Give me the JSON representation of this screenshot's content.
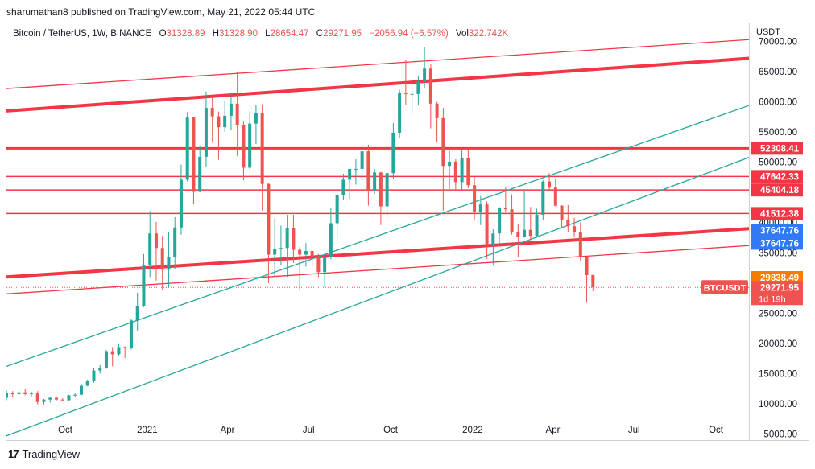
{
  "header": {
    "published": "sharumathan8 published on TradingView.com, May 21, 2022 05:44 UTC"
  },
  "legend": {
    "symbol": "Bitcoin / TetherUS, 1W, BINANCE",
    "o_label": "O",
    "o_value": "31328.89",
    "h_label": "H",
    "h_value": "31328.90",
    "l_label": "L",
    "l_value": "28654.47",
    "c_label": "C",
    "c_value": "29271.95",
    "change": "−2056.94 (−6.57%)",
    "vol_label": "Vol",
    "vol_value": "322.742K"
  },
  "axis": {
    "currency": "USDT"
  },
  "footer": {
    "brand": "TradingView",
    "logo": "17"
  },
  "colors": {
    "up": "#26a69a",
    "down": "#ef5350",
    "level": "#f23645",
    "channel": "#26a69a",
    "blue_tag": "#2962ff",
    "orange_tag": "#f57c00"
  },
  "chart_data": {
    "type": "candlestick",
    "x_range": [
      "2020-07-27",
      "2022-11-07"
    ],
    "ylim": [
      4000,
      73000
    ],
    "y_ticks": [
      5000,
      10000,
      15000,
      20000,
      25000,
      30000,
      35000,
      40000,
      45000,
      50000,
      55000,
      60000,
      65000,
      70000
    ],
    "y_tick_labels": [
      "5000.00",
      "10000.00",
      "15000.00",
      "20000.00",
      "25000.00",
      "30000.00",
      "35000.00",
      "40000.00",
      "45000.00",
      "50000.00",
      "55000.00",
      "60000.00",
      "65000.00",
      "70000.00"
    ],
    "x_ticks": [
      {
        "date": "2020-10-01",
        "label": "Oct"
      },
      {
        "date": "2021-01-01",
        "label": "2021"
      },
      {
        "date": "2021-04-01",
        "label": "Apr"
      },
      {
        "date": "2021-07-01",
        "label": "Jul"
      },
      {
        "date": "2021-10-01",
        "label": "Oct"
      },
      {
        "date": "2022-01-01",
        "label": "2022"
      },
      {
        "date": "2022-04-01",
        "label": "Apr"
      },
      {
        "date": "2022-07-01",
        "label": "Jul"
      },
      {
        "date": "2022-10-01",
        "label": "Oct"
      }
    ],
    "candles": [
      {
        "d": "2020-07-27",
        "o": 11000,
        "h": 12200,
        "l": 10600,
        "c": 11800
      },
      {
        "d": "2020-08-03",
        "o": 11800,
        "h": 12100,
        "l": 11200,
        "c": 11600
      },
      {
        "d": "2020-08-10",
        "o": 11600,
        "h": 12300,
        "l": 11100,
        "c": 11900
      },
      {
        "d": "2020-08-17",
        "o": 11900,
        "h": 12500,
        "l": 11400,
        "c": 11600
      },
      {
        "d": "2020-08-24",
        "o": 11600,
        "h": 12000,
        "l": 11200,
        "c": 11700
      },
      {
        "d": "2020-08-31",
        "o": 11700,
        "h": 12100,
        "l": 9900,
        "c": 10300
      },
      {
        "d": "2020-09-07",
        "o": 10300,
        "h": 10800,
        "l": 9900,
        "c": 10700
      },
      {
        "d": "2020-09-14",
        "o": 10700,
        "h": 11100,
        "l": 10200,
        "c": 11000
      },
      {
        "d": "2020-09-21",
        "o": 11000,
        "h": 11100,
        "l": 10400,
        "c": 10700
      },
      {
        "d": "2020-09-28",
        "o": 10700,
        "h": 10900,
        "l": 10400,
        "c": 10600
      },
      {
        "d": "2020-10-05",
        "o": 10600,
        "h": 11500,
        "l": 10500,
        "c": 11400
      },
      {
        "d": "2020-10-12",
        "o": 11400,
        "h": 11800,
        "l": 11200,
        "c": 11500
      },
      {
        "d": "2020-10-19",
        "o": 11500,
        "h": 13300,
        "l": 11400,
        "c": 13000
      },
      {
        "d": "2020-10-26",
        "o": 13000,
        "h": 14000,
        "l": 12900,
        "c": 13800
      },
      {
        "d": "2020-11-02",
        "o": 13800,
        "h": 15900,
        "l": 13500,
        "c": 15500
      },
      {
        "d": "2020-11-09",
        "o": 15500,
        "h": 16400,
        "l": 15000,
        "c": 16000
      },
      {
        "d": "2020-11-16",
        "o": 16000,
        "h": 18900,
        "l": 15800,
        "c": 18700
      },
      {
        "d": "2020-11-23",
        "o": 18700,
        "h": 19400,
        "l": 16200,
        "c": 18200
      },
      {
        "d": "2020-11-30",
        "o": 18200,
        "h": 19900,
        "l": 18000,
        "c": 19400
      },
      {
        "d": "2020-12-07",
        "o": 19400,
        "h": 19500,
        "l": 17600,
        "c": 19200
      },
      {
        "d": "2020-12-14",
        "o": 19200,
        "h": 24000,
        "l": 19000,
        "c": 23800
      },
      {
        "d": "2020-12-21",
        "o": 23800,
        "h": 28400,
        "l": 22000,
        "c": 26200
      },
      {
        "d": "2020-12-28",
        "o": 26200,
        "h": 34800,
        "l": 26000,
        "c": 33000
      },
      {
        "d": "2021-01-04",
        "o": 33000,
        "h": 41900,
        "l": 31000,
        "c": 38200
      },
      {
        "d": "2021-01-11",
        "o": 38200,
        "h": 40100,
        "l": 30400,
        "c": 35800
      },
      {
        "d": "2021-01-18",
        "o": 35800,
        "h": 37800,
        "l": 28800,
        "c": 32200
      },
      {
        "d": "2021-01-25",
        "o": 32200,
        "h": 38500,
        "l": 29300,
        "c": 34300
      },
      {
        "d": "2021-02-01",
        "o": 34300,
        "h": 40900,
        "l": 32300,
        "c": 39200
      },
      {
        "d": "2021-02-08",
        "o": 39200,
        "h": 49600,
        "l": 38000,
        "c": 47100
      },
      {
        "d": "2021-02-15",
        "o": 47100,
        "h": 58300,
        "l": 46800,
        "c": 57400
      },
      {
        "d": "2021-02-22",
        "o": 57400,
        "h": 57500,
        "l": 43000,
        "c": 45100
      },
      {
        "d": "2021-03-01",
        "o": 45100,
        "h": 52600,
        "l": 45000,
        "c": 50900
      },
      {
        "d": "2021-03-08",
        "o": 50900,
        "h": 61700,
        "l": 49300,
        "c": 59000
      },
      {
        "d": "2021-03-15",
        "o": 59000,
        "h": 61200,
        "l": 53300,
        "c": 57600
      },
      {
        "d": "2021-03-22",
        "o": 57600,
        "h": 58400,
        "l": 50400,
        "c": 55800
      },
      {
        "d": "2021-03-29",
        "o": 55800,
        "h": 60200,
        "l": 55000,
        "c": 57700
      },
      {
        "d": "2021-04-05",
        "o": 57700,
        "h": 61400,
        "l": 55400,
        "c": 59700
      },
      {
        "d": "2021-04-12",
        "o": 59700,
        "h": 64900,
        "l": 51000,
        "c": 56200
      },
      {
        "d": "2021-04-19",
        "o": 56200,
        "h": 56700,
        "l": 47000,
        "c": 49100
      },
      {
        "d": "2021-04-26",
        "o": 49100,
        "h": 58400,
        "l": 48800,
        "c": 56400
      },
      {
        "d": "2021-05-03",
        "o": 56400,
        "h": 59500,
        "l": 53000,
        "c": 58100
      },
      {
        "d": "2021-05-10",
        "o": 58100,
        "h": 59600,
        "l": 42000,
        "c": 46400
      },
      {
        "d": "2021-05-17",
        "o": 46400,
        "h": 46600,
        "l": 30000,
        "c": 34700
      },
      {
        "d": "2021-05-24",
        "o": 34700,
        "h": 40800,
        "l": 31000,
        "c": 35700
      },
      {
        "d": "2021-05-31",
        "o": 35700,
        "h": 39500,
        "l": 33000,
        "c": 35800
      },
      {
        "d": "2021-06-07",
        "o": 35800,
        "h": 41300,
        "l": 31000,
        "c": 39100
      },
      {
        "d": "2021-06-14",
        "o": 39100,
        "h": 41300,
        "l": 33300,
        "c": 35500
      },
      {
        "d": "2021-06-21",
        "o": 35500,
        "h": 36000,
        "l": 28800,
        "c": 34700
      },
      {
        "d": "2021-06-28",
        "o": 34700,
        "h": 36600,
        "l": 32700,
        "c": 35300
      },
      {
        "d": "2021-07-05",
        "o": 35300,
        "h": 35300,
        "l": 32700,
        "c": 34200
      },
      {
        "d": "2021-07-12",
        "o": 34200,
        "h": 34800,
        "l": 31000,
        "c": 31800
      },
      {
        "d": "2021-07-19",
        "o": 31800,
        "h": 35000,
        "l": 29300,
        "c": 34300
      },
      {
        "d": "2021-07-26",
        "o": 34300,
        "h": 42400,
        "l": 33900,
        "c": 39900
      },
      {
        "d": "2021-08-02",
        "o": 39900,
        "h": 44800,
        "l": 37500,
        "c": 44600
      },
      {
        "d": "2021-08-09",
        "o": 44600,
        "h": 48100,
        "l": 43700,
        "c": 47100
      },
      {
        "d": "2021-08-16",
        "o": 47100,
        "h": 48600,
        "l": 43900,
        "c": 48900
      },
      {
        "d": "2021-08-23",
        "o": 48900,
        "h": 50500,
        "l": 46300,
        "c": 48900
      },
      {
        "d": "2021-08-30",
        "o": 48900,
        "h": 52900,
        "l": 46900,
        "c": 51800
      },
      {
        "d": "2021-09-06",
        "o": 51800,
        "h": 52900,
        "l": 42800,
        "c": 45200
      },
      {
        "d": "2021-09-13",
        "o": 45200,
        "h": 48900,
        "l": 44800,
        "c": 48300
      },
      {
        "d": "2021-09-20",
        "o": 48300,
        "h": 48400,
        "l": 39600,
        "c": 42700
      },
      {
        "d": "2021-09-27",
        "o": 42700,
        "h": 48500,
        "l": 40700,
        "c": 48200
      },
      {
        "d": "2021-10-04",
        "o": 48200,
        "h": 56500,
        "l": 47300,
        "c": 54900
      },
      {
        "d": "2021-10-11",
        "o": 54900,
        "h": 62000,
        "l": 54100,
        "c": 61500
      },
      {
        "d": "2021-10-18",
        "o": 61500,
        "h": 67000,
        "l": 59500,
        "c": 61300
      },
      {
        "d": "2021-10-25",
        "o": 61300,
        "h": 63300,
        "l": 58000,
        "c": 61300
      },
      {
        "d": "2021-11-01",
        "o": 61300,
        "h": 64200,
        "l": 59400,
        "c": 63300
      },
      {
        "d": "2021-11-08",
        "o": 63300,
        "h": 69000,
        "l": 62300,
        "c": 65500
      },
      {
        "d": "2021-11-15",
        "o": 65500,
        "h": 66300,
        "l": 55600,
        "c": 59700
      },
      {
        "d": "2021-11-22",
        "o": 59700,
        "h": 60000,
        "l": 53300,
        "c": 57300
      },
      {
        "d": "2021-11-29",
        "o": 57300,
        "h": 59000,
        "l": 42000,
        "c": 49400
      },
      {
        "d": "2021-12-06",
        "o": 49400,
        "h": 51900,
        "l": 45600,
        "c": 50100
      },
      {
        "d": "2021-12-13",
        "o": 50100,
        "h": 50500,
        "l": 45500,
        "c": 46700
      },
      {
        "d": "2021-12-20",
        "o": 46700,
        "h": 52100,
        "l": 45500,
        "c": 50700
      },
      {
        "d": "2021-12-27",
        "o": 50700,
        "h": 52200,
        "l": 45700,
        "c": 46200
      },
      {
        "d": "2022-01-03",
        "o": 46200,
        "h": 47500,
        "l": 40500,
        "c": 41800
      },
      {
        "d": "2022-01-10",
        "o": 41800,
        "h": 44400,
        "l": 39600,
        "c": 43000
      },
      {
        "d": "2022-01-17",
        "o": 43000,
        "h": 43500,
        "l": 34000,
        "c": 36300
      },
      {
        "d": "2022-01-24",
        "o": 36300,
        "h": 38900,
        "l": 32900,
        "c": 38200
      },
      {
        "d": "2022-01-31",
        "o": 38200,
        "h": 42600,
        "l": 36200,
        "c": 42400
      },
      {
        "d": "2022-02-07",
        "o": 42400,
        "h": 45800,
        "l": 41800,
        "c": 42200
      },
      {
        "d": "2022-02-14",
        "o": 42200,
        "h": 44700,
        "l": 38000,
        "c": 38400
      },
      {
        "d": "2022-02-21",
        "o": 38400,
        "h": 39800,
        "l": 34300,
        "c": 37700
      },
      {
        "d": "2022-02-28",
        "o": 37700,
        "h": 45400,
        "l": 37500,
        "c": 38800
      },
      {
        "d": "2022-03-07",
        "o": 38800,
        "h": 42600,
        "l": 37100,
        "c": 37800
      },
      {
        "d": "2022-03-14",
        "o": 37800,
        "h": 42300,
        "l": 37500,
        "c": 41300
      },
      {
        "d": "2022-03-21",
        "o": 41300,
        "h": 47000,
        "l": 40500,
        "c": 46800
      },
      {
        "d": "2022-03-28",
        "o": 46800,
        "h": 48200,
        "l": 45200,
        "c": 45800
      },
      {
        "d": "2022-04-04",
        "o": 45800,
        "h": 47200,
        "l": 42700,
        "c": 42800
      },
      {
        "d": "2022-04-11",
        "o": 42800,
        "h": 42900,
        "l": 39200,
        "c": 40400
      },
      {
        "d": "2022-04-18",
        "o": 40400,
        "h": 42900,
        "l": 38500,
        "c": 39400
      },
      {
        "d": "2022-04-25",
        "o": 39400,
        "h": 40800,
        "l": 37600,
        "c": 38500
      },
      {
        "d": "2022-05-02",
        "o": 38500,
        "h": 40000,
        "l": 33700,
        "c": 34300
      },
      {
        "d": "2022-05-09",
        "o": 34300,
        "h": 34400,
        "l": 26700,
        "c": 31300
      },
      {
        "d": "2022-05-16",
        "o": 31328.89,
        "h": 31328.9,
        "l": 28654.47,
        "c": 29271.95
      }
    ],
    "horizontal_levels": [
      {
        "price": 52308.41,
        "label": "52308.41",
        "style": "red"
      },
      {
        "price": 47642.33,
        "label": "47642.33",
        "style": "red"
      },
      {
        "price": 45404.18,
        "label": "45404.18",
        "style": "red"
      },
      {
        "price": 41512.38,
        "label": "41512.38",
        "style": "red"
      }
    ],
    "trendlines": [
      {
        "color": "red",
        "width": "thick",
        "p1": {
          "d": "2020-07-27",
          "v": 58500
        },
        "p2": {
          "d": "2022-11-07",
          "v": 67200
        }
      },
      {
        "color": "red",
        "width": "thin",
        "p1": {
          "d": "2020-07-27",
          "v": 62200
        },
        "p2": {
          "d": "2022-11-07",
          "v": 70300
        }
      },
      {
        "color": "red",
        "width": "thick",
        "p1": {
          "d": "2020-07-27",
          "v": 31000
        },
        "p2": {
          "d": "2022-11-07",
          "v": 39000
        }
      },
      {
        "color": "red",
        "width": "thin",
        "p1": {
          "d": "2020-07-27",
          "v": 28200
        },
        "p2": {
          "d": "2022-11-07",
          "v": 36200
        }
      },
      {
        "color": "teal",
        "width": "thin",
        "p1": {
          "d": "2020-07-27",
          "v": 16200
        },
        "p2": {
          "d": "2022-11-07",
          "v": 59400
        }
      },
      {
        "color": "teal",
        "width": "thin",
        "p1": {
          "d": "2020-07-27",
          "v": 4700
        },
        "p2": {
          "d": "2022-11-07",
          "v": 50800
        }
      }
    ],
    "price_tags": [
      {
        "value": 52308.41,
        "label": "52308.41",
        "color": "red"
      },
      {
        "value": 47642.33,
        "label": "47642.33",
        "color": "red"
      },
      {
        "value": 45404.18,
        "label": "45404.18",
        "color": "red"
      },
      {
        "value": 41512.38,
        "label": "41512.38",
        "color": "red"
      },
      {
        "value": 37647.76,
        "label": "37647.76",
        "color": "blue"
      },
      {
        "value": 37647.76,
        "label": "37647.76",
        "color": "blue"
      },
      {
        "value": 29838.49,
        "label": "29838.49",
        "color": "orange"
      },
      {
        "value": 29838.49,
        "label": "29838.49",
        "color": "orange"
      },
      {
        "value": 29271.95,
        "label": "29271.95",
        "color": "current",
        "sub": "1d 19h"
      }
    ],
    "symbol_badge": "BTCUSDT",
    "current_price": 29271.95
  }
}
